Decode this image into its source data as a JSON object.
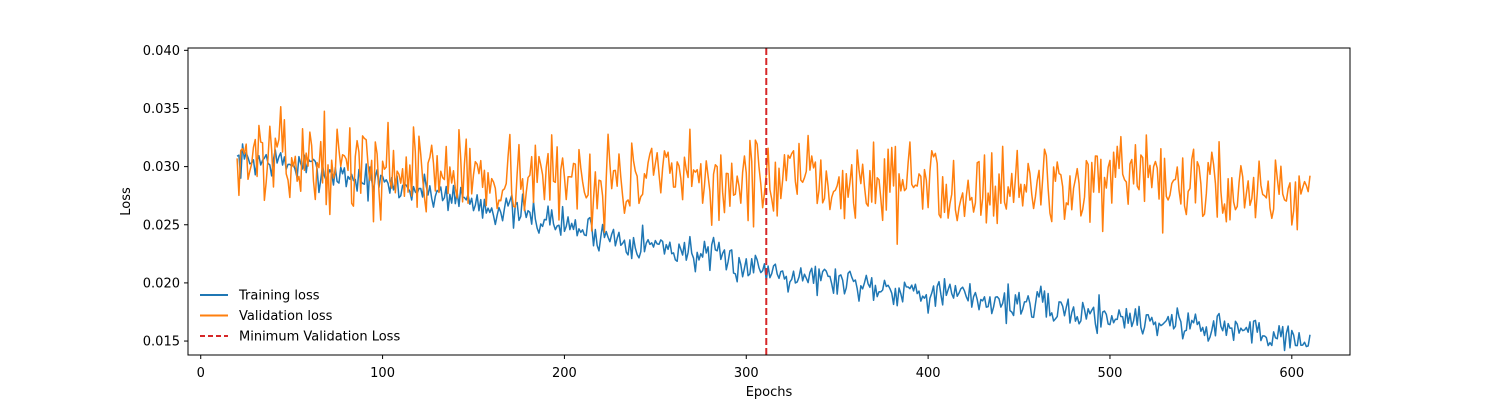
{
  "chart_data": {
    "type": "line",
    "title": "",
    "xlabel": "Epochs",
    "ylabel": "Loss",
    "xlim": [
      -7,
      632
    ],
    "ylim": [
      0.0138,
      0.0402
    ],
    "x_ticks": [
      0,
      100,
      200,
      300,
      400,
      500,
      600
    ],
    "x_tick_labels": [
      "0",
      "100",
      "200",
      "300",
      "400",
      "500",
      "600"
    ],
    "y_ticks": [
      0.015,
      0.02,
      0.025,
      0.03,
      0.035,
      0.04
    ],
    "y_tick_labels": [
      "0.015",
      "0.020",
      "0.025",
      "0.030",
      "0.035",
      "0.040"
    ],
    "grid": false,
    "legend_position": "lower-left",
    "series": [
      {
        "name": "Training loss",
        "color": "#1f77b4",
        "x_start": 20,
        "x_end": 610,
        "style": "solid",
        "trend": [
          [
            20,
            0.0305
          ],
          [
            40,
            0.0305
          ],
          [
            60,
            0.0298
          ],
          [
            80,
            0.0292
          ],
          [
            100,
            0.0285
          ],
          [
            120,
            0.028
          ],
          [
            140,
            0.0275
          ],
          [
            160,
            0.0265
          ],
          [
            180,
            0.0258
          ],
          [
            200,
            0.025
          ],
          [
            220,
            0.0242
          ],
          [
            240,
            0.0235
          ],
          [
            260,
            0.023
          ],
          [
            280,
            0.0222
          ],
          [
            300,
            0.0215
          ],
          [
            320,
            0.021
          ],
          [
            340,
            0.0205
          ],
          [
            360,
            0.02
          ],
          [
            380,
            0.0196
          ],
          [
            400,
            0.0192
          ],
          [
            420,
            0.0188
          ],
          [
            440,
            0.0184
          ],
          [
            460,
            0.018
          ],
          [
            480,
            0.0175
          ],
          [
            500,
            0.0172
          ],
          [
            520,
            0.0168
          ],
          [
            540,
            0.0165
          ],
          [
            560,
            0.0162
          ],
          [
            580,
            0.0158
          ],
          [
            600,
            0.0155
          ],
          [
            610,
            0.0152
          ]
        ],
        "noise_amplitude": 0.0011,
        "noise_seed": 7
      },
      {
        "name": "Validation loss",
        "color": "#ff7f0e",
        "x_start": 20,
        "x_end": 610,
        "style": "solid",
        "trend": [
          [
            20,
            0.031
          ],
          [
            50,
            0.0305
          ],
          [
            100,
            0.0298
          ],
          [
            150,
            0.0293
          ],
          [
            200,
            0.029
          ],
          [
            250,
            0.0288
          ],
          [
            300,
            0.0287
          ],
          [
            350,
            0.0286
          ],
          [
            400,
            0.0285
          ],
          [
            450,
            0.0284
          ],
          [
            500,
            0.0284
          ],
          [
            550,
            0.0283
          ],
          [
            610,
            0.028
          ]
        ],
        "noise_amplitude": 0.0027,
        "noise_seed": 13
      }
    ],
    "vline": {
      "name": "Minimum Validation Loss",
      "x": 311,
      "color": "#d62728",
      "style": "dashed"
    }
  }
}
